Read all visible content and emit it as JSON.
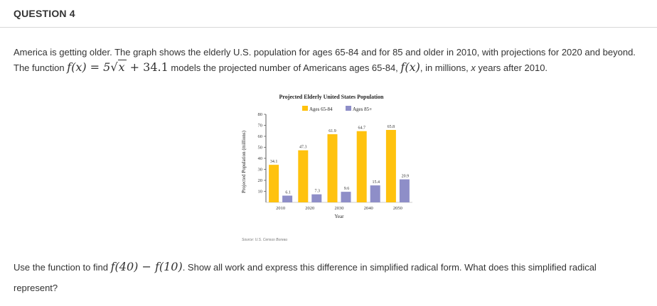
{
  "question": {
    "title": "QUESTION 4",
    "intro_1": "America is getting older.  The graph shows the elderly U.S. population for ages 65-84 and for 85 and older in 2010, with projections for 2020 and beyond. The function ",
    "func_lhs": "f(x) = 5",
    "func_radicand": "x",
    "func_rhs": " + 34.1",
    "intro_2": " models the projected number of Americans ages 65-84, ",
    "fx": "f(x)",
    "intro_3": ", in millions, ",
    "xvar": "x",
    "intro_4": " years after 2010.",
    "ask_1": "Use the function to find ",
    "ask_expr": "f(40) − f(10)",
    "ask_2": ". Show all work and express this difference in simplified radical form.  What does this simplified radical",
    "ask_3": "represent?"
  },
  "source_text": "Source: U.S. Census Bureau",
  "colors": {
    "series_65_84": "#FFC20E",
    "series_85": "#8E8EC8",
    "rule": "#d8d8d8"
  },
  "chart_data": {
    "type": "bar",
    "title": "Projected Elderly United States Population",
    "xlabel": "Year",
    "ylabel": "Projected Population (millions)",
    "categories": [
      "2010",
      "2020",
      "2030",
      "2040",
      "2050"
    ],
    "series": [
      {
        "name": "Ages 65-84",
        "values": [
          34.1,
          47.3,
          61.9,
          64.7,
          65.8
        ],
        "labels": [
          "34.1",
          "47.3",
          "61.9",
          "64.7",
          "65.8"
        ]
      },
      {
        "name": "Ages 85+",
        "values": [
          6.1,
          7.3,
          9.6,
          15.4,
          20.9
        ],
        "labels": [
          "6.1",
          "7.3",
          "9.6",
          "15.4",
          "20.9"
        ]
      }
    ],
    "ylim": [
      0,
      80
    ],
    "yticks": [
      10,
      20,
      30,
      40,
      50,
      60,
      70,
      80
    ],
    "grid": false,
    "legend": "top"
  }
}
